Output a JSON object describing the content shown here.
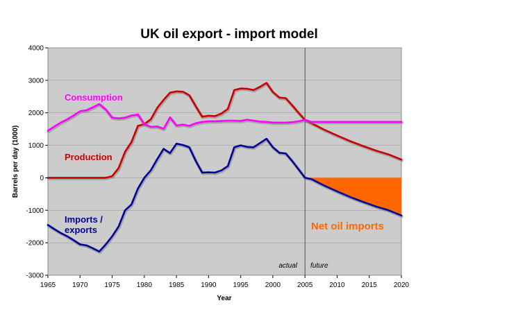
{
  "chart_data": {
    "type": "line",
    "title": "UK oil export  - import model",
    "xlabel": "Year",
    "ylabel": "Barrels per day (1000)",
    "xlim": [
      1965,
      2020
    ],
    "ylim": [
      -3000,
      4000
    ],
    "x_ticks": [
      "1965",
      "1970",
      "1975",
      "1980",
      "1985",
      "1990",
      "1995",
      "2000",
      "2005",
      "2010",
      "2015",
      "2020"
    ],
    "y_ticks": [
      "4000",
      "3000",
      "2000",
      "1000",
      "0",
      "-1000",
      "-2000",
      "-3000"
    ],
    "grid": "horizontal",
    "background": "#cccccc",
    "divider_year": 2005,
    "annotations": {
      "actual": "actual",
      "future": "future",
      "net_imports": "Net oil imports"
    },
    "series": [
      {
        "name": "Consumption",
        "label": "Consumption",
        "color": "#ff00ff",
        "x": [
          1965,
          1966,
          1967,
          1968,
          1969,
          1970,
          1971,
          1972,
          1973,
          1974,
          1975,
          1976,
          1977,
          1978,
          1979,
          1980,
          1981,
          1982,
          1983,
          1984,
          1985,
          1986,
          1987,
          1988,
          1989,
          1990,
          1991,
          1992,
          1993,
          1994,
          1995,
          1996,
          1997,
          1998,
          1999,
          2000,
          2001,
          2002,
          2003,
          2004,
          2005,
          2006,
          2010,
          2015,
          2020
        ],
        "y": [
          1450,
          1580,
          1700,
          1800,
          1920,
          2050,
          2080,
          2170,
          2270,
          2100,
          1850,
          1830,
          1850,
          1920,
          1950,
          1650,
          1570,
          1580,
          1510,
          1860,
          1610,
          1640,
          1600,
          1680,
          1720,
          1740,
          1740,
          1750,
          1760,
          1760,
          1750,
          1790,
          1760,
          1730,
          1720,
          1700,
          1700,
          1700,
          1710,
          1740,
          1780,
          1720,
          1720,
          1720,
          1720
        ]
      },
      {
        "name": "Production",
        "label": "Production",
        "color": "#cc0000",
        "x": [
          1965,
          1970,
          1974,
          1975,
          1976,
          1977,
          1978,
          1979,
          1980,
          1981,
          1982,
          1983,
          1984,
          1985,
          1986,
          1987,
          1988,
          1989,
          1990,
          1991,
          1992,
          1993,
          1994,
          1995,
          1996,
          1997,
          1998,
          1999,
          2000,
          2001,
          2002,
          2003,
          2004,
          2005,
          2006,
          2008,
          2010,
          2012,
          2014,
          2016,
          2018,
          2020
        ],
        "y": [
          0,
          0,
          0,
          50,
          300,
          800,
          1100,
          1600,
          1650,
          1800,
          2150,
          2400,
          2620,
          2660,
          2650,
          2540,
          2200,
          1880,
          1910,
          1900,
          1980,
          2120,
          2700,
          2750,
          2740,
          2700,
          2800,
          2920,
          2640,
          2470,
          2450,
          2230,
          2000,
          1780,
          1680,
          1480,
          1300,
          1130,
          980,
          840,
          720,
          560
        ]
      },
      {
        "name": "Imports / exports",
        "label_line1": "Imports /",
        "label_line2": "exports",
        "color": "#000099",
        "x": [
          1965,
          1966,
          1967,
          1968,
          1969,
          1970,
          1971,
          1972,
          1973,
          1974,
          1975,
          1976,
          1977,
          1978,
          1979,
          1980,
          1981,
          1982,
          1983,
          1984,
          1985,
          1986,
          1987,
          1988,
          1989,
          1990,
          1991,
          1992,
          1993,
          1994,
          1995,
          1996,
          1997,
          1998,
          1999,
          2000,
          2001,
          2002,
          2003,
          2004,
          2005,
          2006,
          2008,
          2010,
          2012,
          2014,
          2016,
          2018,
          2020
        ],
        "y": [
          -1450,
          -1580,
          -1700,
          -1800,
          -1920,
          -2050,
          -2080,
          -2170,
          -2270,
          -2050,
          -1800,
          -1500,
          -1000,
          -820,
          -330,
          0,
          230,
          570,
          890,
          760,
          1050,
          1010,
          940,
          520,
          160,
          170,
          160,
          230,
          360,
          940,
          1000,
          950,
          940,
          1070,
          1200,
          940,
          770,
          750,
          520,
          260,
          0,
          -40,
          -240,
          -420,
          -590,
          -740,
          -880,
          -1000,
          -1160
        ]
      }
    ]
  }
}
